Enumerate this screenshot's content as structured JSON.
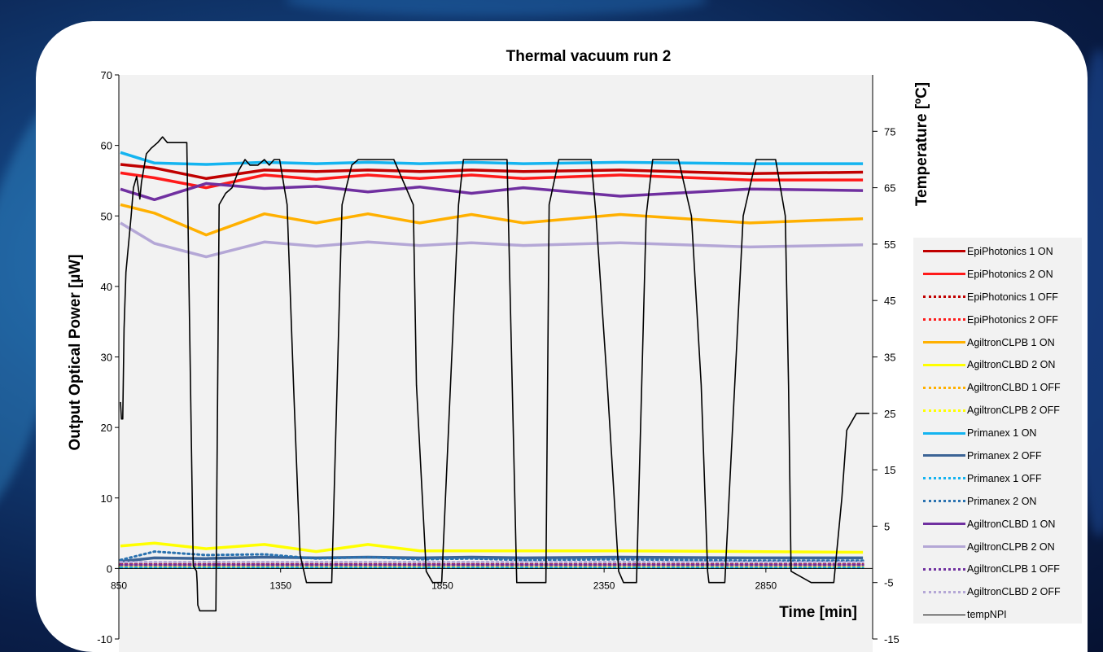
{
  "chart_data": {
    "type": "line",
    "title": "Thermal vacuum run 2",
    "xlabel": "Time [min]",
    "ylabel": "Output Optical Power [µW]",
    "y2label": "Temperature [ºC]",
    "xlim": [
      850,
      3180
    ],
    "ylim": [
      -10,
      70
    ],
    "y2lim": [
      -15,
      85
    ],
    "x_ticks": [
      "850",
      "1350",
      "1850",
      "2350",
      "2850"
    ],
    "y_ticks": [
      "-10",
      "0",
      "10",
      "20",
      "30",
      "40",
      "50",
      "60",
      "70"
    ],
    "y2_ticks": [
      "-15",
      "-5",
      "5",
      "15",
      "25",
      "35",
      "45",
      "55",
      "65",
      "75"
    ],
    "grid": false,
    "legend_position": "right",
    "series": [
      {
        "name": "EpiPhotonics 1 ON",
        "color": "#c00000",
        "style": "solid",
        "values": [
          57.3,
          56.8,
          55.3,
          56.5,
          56.3,
          56.5,
          56.3,
          56.5,
          56.3,
          56.5,
          56.0,
          56.2
        ]
      },
      {
        "name": "EpiPhotonics 2 ON",
        "color": "#ff1a1a",
        "style": "solid",
        "values": [
          56.1,
          55.4,
          54.0,
          55.8,
          55.2,
          55.8,
          55.3,
          55.8,
          55.3,
          55.8,
          55.1,
          55.1
        ]
      },
      {
        "name": "EpiPhotonics 1 OFF",
        "color": "#c00000",
        "style": "dotted",
        "values": [
          0.6,
          0.6,
          0.6,
          0.6,
          0.6,
          0.6,
          0.6,
          0.6,
          0.6,
          0.6,
          0.6,
          0.6
        ]
      },
      {
        "name": "EpiPhotonics 2 OFF",
        "color": "#ff1a1a",
        "style": "dotted",
        "values": [
          0.4,
          0.4,
          0.4,
          0.4,
          0.4,
          0.4,
          0.4,
          0.4,
          0.4,
          0.4,
          0.4,
          0.4
        ]
      },
      {
        "name": "AgiltronCLPB 1 ON",
        "color": "#ffb000",
        "style": "solid",
        "values": [
          51.6,
          50.4,
          47.3,
          50.3,
          49.0,
          50.3,
          49.0,
          50.2,
          49.0,
          50.2,
          49.0,
          49.6
        ]
      },
      {
        "name": "AgiltronCLBD 2 ON",
        "color": "#ffff00",
        "style": "solid",
        "values": [
          3.2,
          3.6,
          2.8,
          3.4,
          2.4,
          3.4,
          2.5,
          2.5,
          2.5,
          2.5,
          2.4,
          2.3
        ]
      },
      {
        "name": "AgiltronCLBD 1 OFF",
        "color": "#ffb000",
        "style": "dotted",
        "values": [
          0.3,
          0.3,
          0.3,
          0.3,
          0.3,
          0.3,
          0.3,
          0.3,
          0.3,
          0.3,
          0.3,
          0.3
        ]
      },
      {
        "name": "AgiltronCLPB 2 OFF",
        "color": "#ffff00",
        "style": "dotted",
        "values": [
          0.2,
          0.2,
          0.2,
          0.2,
          0.2,
          0.2,
          0.2,
          0.2,
          0.2,
          0.2,
          0.2,
          0.2
        ]
      },
      {
        "name": "Primanex 1 ON",
        "color": "#14b4f0",
        "style": "solid",
        "values": [
          59.0,
          57.5,
          57.3,
          57.6,
          57.4,
          57.6,
          57.4,
          57.6,
          57.4,
          57.6,
          57.4,
          57.4
        ]
      },
      {
        "name": "Primanex 2 OFF",
        "color": "#3c6496",
        "style": "solid",
        "values": [
          1.0,
          1.5,
          1.4,
          1.6,
          1.5,
          1.6,
          1.5,
          1.6,
          1.5,
          1.6,
          1.5,
          1.5
        ]
      },
      {
        "name": "Primanex 1 OFF",
        "color": "#14b4f0",
        "style": "dotted",
        "values": [
          0.1,
          0.1,
          0.1,
          0.1,
          0.1,
          0.1,
          0.1,
          0.1,
          0.1,
          0.1,
          0.1,
          0.1
        ]
      },
      {
        "name": "Primanex 2 ON",
        "color": "#2a72b0",
        "style": "dotted",
        "values": [
          1.2,
          2.4,
          1.9,
          2.0,
          1.4,
          1.6,
          1.3,
          1.4,
          1.2,
          1.3,
          1.1,
          1.1
        ]
      },
      {
        "name": "AgiltronCLBD 1 ON",
        "color": "#7030a0",
        "style": "solid",
        "values": [
          53.8,
          52.3,
          54.6,
          53.9,
          54.2,
          53.4,
          54.1,
          53.2,
          54.0,
          52.8,
          53.8,
          53.6
        ]
      },
      {
        "name": "AgiltronCLPB 2 ON",
        "color": "#b4a7d6",
        "style": "solid",
        "values": [
          49.0,
          46.1,
          44.2,
          46.3,
          45.7,
          46.3,
          45.8,
          46.2,
          45.8,
          46.2,
          45.6,
          45.9
        ]
      },
      {
        "name": "AgiltronCLPB 1 OFF",
        "color": "#7030a0",
        "style": "dotted",
        "values": [
          0.5,
          0.5,
          0.5,
          0.5,
          0.5,
          0.5,
          0.5,
          0.5,
          0.5,
          0.5,
          0.5,
          0.5
        ]
      },
      {
        "name": "AgiltronCLBD 2 OFF",
        "color": "#b4a7d6",
        "style": "dotted",
        "values": [
          0.9,
          0.9,
          0.9,
          0.9,
          0.9,
          0.9,
          0.9,
          0.9,
          0.9,
          0.9,
          0.9,
          0.9
        ]
      }
    ],
    "series_x": [
      855,
      960,
      1120,
      1300,
      1460,
      1620,
      1780,
      1940,
      2100,
      2400,
      2800,
      3150
    ],
    "temperature_series": {
      "name": "tempNPI",
      "color": "#000000",
      "axis": "secondary",
      "x": [
        855,
        858,
        862,
        866,
        872,
        880,
        888,
        895,
        905,
        915,
        920,
        935,
        950,
        970,
        985,
        1000,
        1030,
        1060,
        1080,
        1090,
        1092,
        1094,
        1100,
        1130,
        1140,
        1145,
        1150,
        1160,
        1180,
        1200,
        1220,
        1240,
        1255,
        1280,
        1300,
        1315,
        1330,
        1347,
        1370,
        1390,
        1410,
        1430,
        1450,
        1480,
        1508,
        1540,
        1570,
        1590,
        1600,
        1630,
        1660,
        1690,
        1700,
        1760,
        1770,
        1800,
        1820,
        1840,
        1848,
        1900,
        1915,
        1960,
        1990,
        2010,
        2020,
        2050,
        2080,
        2100,
        2106,
        2170,
        2180,
        2210,
        2240,
        2260,
        2265,
        2310,
        2325,
        2360,
        2395,
        2410,
        2420,
        2450,
        2480,
        2500,
        2505,
        2570,
        2580,
        2620,
        2650,
        2670,
        2674,
        2710,
        2723,
        2780,
        2820,
        2840,
        2850,
        2880,
        2910,
        2920,
        2928,
        2990,
        3000,
        3030,
        3060,
        3085,
        3100,
        3130,
        3170
      ],
      "y": [
        27,
        24,
        24,
        40,
        50,
        55,
        60,
        65,
        67,
        63,
        66,
        71,
        72,
        73,
        74,
        73,
        73,
        73,
        -2,
        -3,
        -5,
        -9,
        -10,
        -10,
        -10,
        -10,
        -10,
        62,
        64,
        65,
        68,
        70,
        69,
        69,
        70,
        69,
        70,
        70,
        62,
        30,
        0,
        -5,
        -5,
        -5,
        -5,
        62,
        69,
        70,
        70,
        70,
        70,
        70,
        70,
        62,
        30,
        -3,
        -5,
        -5,
        -5,
        62,
        70,
        70,
        70,
        70,
        70,
        70,
        -5,
        -5,
        -5,
        -5,
        62,
        70,
        70,
        70,
        70,
        70,
        60,
        30,
        -3,
        -5,
        -5,
        -5,
        60,
        70,
        70,
        70,
        70,
        60,
        30,
        -3,
        -5,
        -5,
        -5,
        60,
        70,
        70,
        70,
        70,
        60,
        30,
        -3,
        -5,
        -5,
        -5,
        -5,
        10,
        22,
        25,
        25
      ]
    }
  }
}
